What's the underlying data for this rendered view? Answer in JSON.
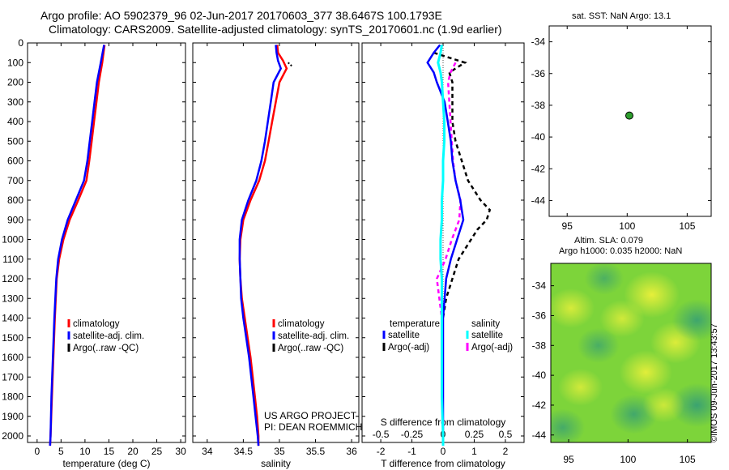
{
  "header": {
    "title_line1": "Argo profile: AO 5902379_96 02-Jun-2017 20170603_377 38.6467S 100.1793E",
    "title_line2": "Climatology: CARS2009. Satellite-adjusted climatology: synTS_20170601.nc (1.9d earlier)"
  },
  "side": {
    "sst_title": "sat. SST: NaN Argo: 13.1",
    "sla_line1": "Altim. SLA: 0.079",
    "sla_line2": "Argo h1000: 0.035 h2000: NaN",
    "credit": "©IMOS 09-Jun-2017 13:43:57"
  },
  "colors": {
    "climatology": "#ff0000",
    "satellite": "#0000ff",
    "argo": "#000000",
    "sal_satellite": "#00ffff",
    "sal_argo": "#ff00ff",
    "marker": "#2e9e2e"
  },
  "chart_data": [
    {
      "type": "line",
      "xlabel": "temperature (deg C)",
      "ylabel": "",
      "xlim": [
        -2,
        31
      ],
      "ylim": [
        2060,
        0
      ],
      "xticks": [
        0,
        5,
        10,
        15,
        20,
        25,
        30
      ],
      "yticks": [
        0,
        100,
        200,
        300,
        400,
        500,
        600,
        700,
        800,
        900,
        1000,
        1100,
        1200,
        1300,
        1400,
        1500,
        1600,
        1700,
        1800,
        1900,
        2000
      ],
      "legend": [
        "climatology",
        "satellite-adj. clim.",
        "Argo(..raw -QC)"
      ],
      "series": [
        {
          "name": "climatology",
          "depth": [
            10,
            100,
            200,
            300,
            400,
            500,
            600,
            700,
            800,
            900,
            1000,
            1100,
            1200,
            1400,
            1600,
            1800,
            2000,
            2050
          ],
          "values": [
            14.1,
            13.6,
            12.9,
            12.4,
            11.9,
            11.4,
            10.9,
            10.3,
            8.6,
            6.8,
            5.5,
            4.6,
            4.1,
            3.7,
            3.4,
            3.1,
            2.8,
            2.7
          ]
        },
        {
          "name": "satellite-adj. clim.",
          "depth": [
            10,
            100,
            200,
            300,
            400,
            500,
            600,
            700,
            800,
            900,
            1000,
            1100,
            1200,
            1400,
            1600,
            1800,
            2000,
            2050
          ],
          "values": [
            14.0,
            13.3,
            12.5,
            12.0,
            11.5,
            11.0,
            10.5,
            9.8,
            8.1,
            6.4,
            5.2,
            4.4,
            4.0,
            3.6,
            3.3,
            3.0,
            2.8,
            2.7
          ]
        }
      ],
      "annotations": [
        "US ARGO PROJECT",
        "PI: DEAN ROEMMICH"
      ]
    },
    {
      "type": "line",
      "xlabel": "salinity",
      "xlim": [
        33.8,
        36.1
      ],
      "ylim": [
        2060,
        0
      ],
      "xticks": [
        34,
        34.5,
        35,
        35.5,
        36
      ],
      "xticklabels": [
        "34",
        "34.5",
        "35",
        "35.5",
        "36"
      ],
      "legend": [
        "climatology",
        "satellite-adj. clim.",
        "Argo(..raw -QC)"
      ],
      "series": [
        {
          "name": "climatology",
          "depth": [
            10,
            50,
            90,
            130,
            200,
            300,
            400,
            500,
            600,
            700,
            800,
            900,
            1000,
            1100,
            1200,
            1300,
            1400,
            1500,
            1600,
            1700,
            1800,
            1900,
            2000,
            2050
          ],
          "values": [
            34.97,
            34.98,
            35.05,
            35.1,
            35.0,
            34.95,
            34.9,
            34.85,
            34.8,
            34.72,
            34.6,
            34.5,
            34.46,
            34.45,
            34.46,
            34.48,
            34.52,
            34.56,
            34.6,
            34.63,
            34.66,
            34.69,
            34.71,
            34.71
          ]
        },
        {
          "name": "satellite-adj. clim.",
          "depth": [
            10,
            50,
            90,
            130,
            200,
            300,
            400,
            500,
            600,
            700,
            800,
            900,
            1000,
            1100,
            1200,
            1300,
            1400,
            1500,
            1600,
            1700,
            1800,
            1900,
            2000,
            2050
          ],
          "values": [
            34.95,
            34.96,
            34.98,
            35.02,
            34.92,
            34.88,
            34.84,
            34.8,
            34.75,
            34.68,
            34.57,
            34.48,
            34.45,
            34.45,
            34.46,
            34.47,
            34.5,
            34.54,
            34.58,
            34.61,
            34.64,
            34.67,
            34.7,
            34.71
          ]
        },
        {
          "name": "Argo(..raw -QC)",
          "depth": [
            100,
            120
          ],
          "values": [
            35.12,
            35.18
          ]
        }
      ]
    },
    {
      "type": "line",
      "xlabel": "T difference from climatology",
      "xlabel2": "S difference from climatology",
      "xlim": [
        -2.6,
        2.6
      ],
      "ylim": [
        2060,
        0
      ],
      "xticks": [
        -2,
        -1,
        0,
        1,
        2
      ],
      "xticks_top": [
        -0.5,
        -0.25,
        0,
        0.25,
        0.5
      ],
      "xticklabels_top": [
        "-0.5",
        "-0.25",
        "0",
        "0.25",
        "0.5"
      ],
      "legend_titles": [
        "temperature",
        "salinity"
      ],
      "legend": [
        "satellite",
        "Argo(-adj)",
        "satellite",
        "Argo(-adj)"
      ],
      "series": [
        {
          "name": "temperature satellite",
          "depth": [
            10,
            50,
            100,
            150,
            200,
            300,
            400,
            500,
            600,
            700,
            800,
            900,
            1000,
            1100,
            1200,
            1300,
            1400,
            1600,
            1800,
            2000,
            2050
          ],
          "values": [
            -0.1,
            -0.3,
            -0.5,
            -0.3,
            -0.2,
            0.05,
            0.15,
            0.25,
            0.3,
            0.4,
            0.55,
            0.65,
            0.45,
            0.25,
            0.1,
            0.05,
            0.0,
            0.0,
            0.0,
            0.0,
            0.0
          ]
        },
        {
          "name": "temperature Argo(-adj)",
          "depth": [
            50,
            100,
            150,
            200,
            300,
            400,
            500,
            600,
            700,
            800,
            850,
            900,
            950,
            1000,
            1100,
            1200,
            1300,
            1400
          ],
          "values": [
            -0.3,
            0.7,
            0.2,
            0.3,
            0.3,
            0.3,
            0.4,
            0.6,
            0.8,
            1.2,
            1.5,
            1.4,
            1.1,
            0.9,
            0.5,
            0.3,
            0.1,
            0.0
          ]
        },
        {
          "name": "salinity satellite",
          "depth": [
            10,
            50,
            100,
            150,
            200,
            300,
            400,
            500,
            600,
            700,
            800,
            900,
            1000,
            1100,
            1200,
            1400,
            1600,
            1800,
            2000,
            2050
          ],
          "values": [
            -0.01,
            -0.02,
            -0.04,
            -0.02,
            -0.01,
            0.0,
            0.01,
            0.01,
            0.0,
            0.0,
            -0.01,
            -0.01,
            -0.02,
            -0.02,
            -0.01,
            -0.01,
            -0.01,
            -0.01,
            0.0,
            0.0
          ]
        },
        {
          "name": "salinity Argo(-adj)",
          "depth": [
            100,
            150,
            200,
            400,
            600,
            700,
            800,
            900,
            1000,
            1100,
            1200,
            1300,
            1400
          ],
          "values": [
            0.1,
            0.06,
            0.04,
            0.06,
            0.08,
            0.1,
            0.14,
            0.13,
            0.07,
            0.02,
            -0.05,
            -0.03,
            -0.01
          ]
        }
      ]
    },
    {
      "type": "scatter",
      "title": "sat. SST: NaN Argo: 13.1",
      "xlim": [
        93.5,
        107
      ],
      "ylim": [
        -45,
        -33
      ],
      "xticks": [
        95,
        100,
        105
      ],
      "yticks": [
        -34,
        -36,
        -38,
        -40,
        -42,
        -44
      ],
      "points": [
        {
          "lon": 100.18,
          "lat": -38.65
        }
      ]
    },
    {
      "type": "heatmap",
      "title": "Altim. SLA: 0.079 / Argo h1000: 0.035 h2000: NaN",
      "xlim": [
        93.5,
        107
      ],
      "ylim": [
        -44.5,
        -32.5
      ],
      "xticks": [
        95,
        100,
        105
      ],
      "yticks": [
        -34,
        -36,
        -38,
        -40,
        -42,
        -44
      ],
      "blobs": [
        {
          "lon": 95.2,
          "lat": -35.5,
          "v": 0.6
        },
        {
          "lon": 102.0,
          "lat": -34.6,
          "v": 0.9
        },
        {
          "lon": 99.5,
          "lat": -36.2,
          "v": 0.5
        },
        {
          "lon": 104.0,
          "lat": -37.8,
          "v": 0.7
        },
        {
          "lon": 96.0,
          "lat": -40.8,
          "v": 0.5
        },
        {
          "lon": 101.5,
          "lat": -39.8,
          "v": 0.8
        },
        {
          "lon": 97.5,
          "lat": -38.0,
          "v": -0.4
        },
        {
          "lon": 105.8,
          "lat": -36.3,
          "v": -0.7
        },
        {
          "lon": 100.5,
          "lat": -42.6,
          "v": -0.6
        },
        {
          "lon": 94.5,
          "lat": -43.5,
          "v": -0.5
        },
        {
          "lon": 105.8,
          "lat": -42.0,
          "v": -0.8
        },
        {
          "lon": 103.0,
          "lat": -42.0,
          "v": 0.4
        },
        {
          "lon": 98.0,
          "lat": -33.5,
          "v": -0.3
        }
      ]
    }
  ]
}
